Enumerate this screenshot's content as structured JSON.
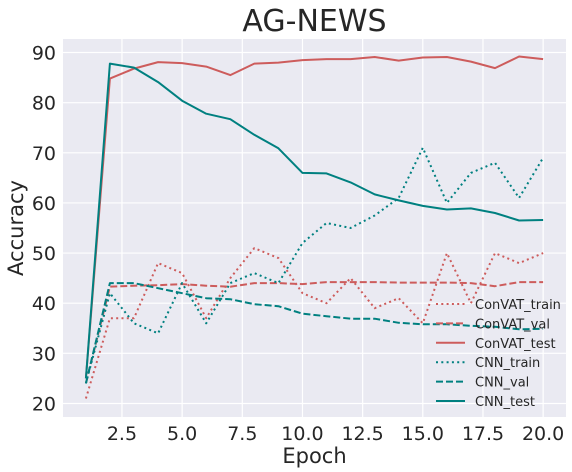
{
  "chart_data": {
    "type": "line",
    "title": "AG-NEWS",
    "xlabel": "Epoch",
    "ylabel": "Accuracy",
    "xlim": [
      0.05,
      20.95
    ],
    "ylim": [
      17.3,
      92.7
    ],
    "grid": true,
    "legend_position": "lower-right",
    "x_ticks": [
      2.5,
      5.0,
      7.5,
      10.0,
      12.5,
      15.0,
      17.5,
      20.0
    ],
    "x_tick_labels": [
      "2.5",
      "5.0",
      "7.5",
      "10.0",
      "12.5",
      "15.0",
      "17.5",
      "20.0"
    ],
    "y_ticks": [
      20,
      30,
      40,
      50,
      60,
      70,
      80,
      90
    ],
    "y_tick_labels": [
      "20",
      "30",
      "40",
      "50",
      "60",
      "70",
      "80",
      "90"
    ],
    "x": [
      1,
      2,
      3,
      4,
      5,
      6,
      7,
      8,
      9,
      10,
      11,
      12,
      13,
      14,
      15,
      16,
      17,
      18,
      19,
      20
    ],
    "series": [
      {
        "name": "ConVAT_train",
        "color": "#cd5c5c",
        "style": "dotted",
        "values": [
          21,
          37,
          37,
          48,
          46,
          37,
          45,
          51,
          49,
          42,
          40,
          45,
          39,
          41,
          36,
          50,
          40,
          50,
          48,
          50
        ]
      },
      {
        "name": "ConVAT_val",
        "color": "#cd5c5c",
        "style": "dashed",
        "values": [
          24,
          43.3,
          43.5,
          43.6,
          43.8,
          43.5,
          43.3,
          44,
          44,
          43.8,
          44.2,
          44.2,
          44.2,
          44.1,
          44.1,
          44.1,
          44,
          43.4,
          44.2,
          44.2
        ]
      },
      {
        "name": "ConVAT_test",
        "color": "#cd5c5c",
        "style": "solid",
        "values": [
          25,
          84.8,
          86.8,
          88.1,
          87.9,
          87.2,
          85.5,
          87.8,
          88,
          88.5,
          88.7,
          88.7,
          89.1,
          88.4,
          89,
          89.1,
          88.2,
          86.9,
          89.2,
          88.7
        ]
      },
      {
        "name": "CNN_train",
        "color": "#008080",
        "style": "dotted",
        "values": [
          24,
          42,
          36,
          34,
          44,
          36,
          44,
          46,
          44,
          52,
          56,
          55,
          57.5,
          61,
          71,
          60,
          66,
          68,
          61,
          69
        ]
      },
      {
        "name": "CNN_val",
        "color": "#008080",
        "style": "dashed",
        "values": [
          24,
          44,
          44,
          43,
          42,
          41,
          40.8,
          39.8,
          39.4,
          37.9,
          37.4,
          36.9,
          36.9,
          36.1,
          35.8,
          35.8,
          35.5,
          35.3,
          34.8,
          34.9
        ]
      },
      {
        "name": "CNN_test",
        "color": "#008080",
        "style": "solid",
        "values": [
          25,
          87.8,
          87,
          84.1,
          80.4,
          77.8,
          76.7,
          73.6,
          70.9,
          66,
          65.9,
          64.1,
          61.7,
          60.5,
          59.4,
          58.7,
          58.9,
          58,
          56.5,
          56.6
        ]
      }
    ]
  }
}
